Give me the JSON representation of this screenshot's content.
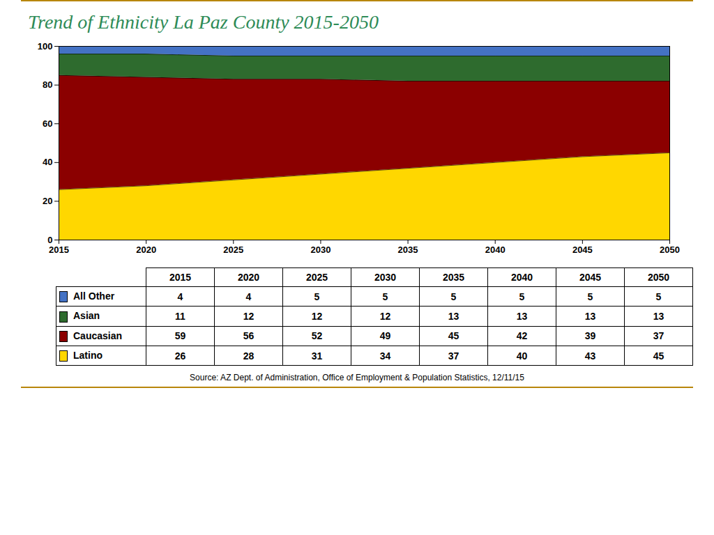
{
  "chart_data": {
    "type": "area",
    "title": "Trend of Ethnicity La Paz County 2015-2050",
    "x": [
      2015,
      2020,
      2025,
      2030,
      2035,
      2040,
      2045,
      2050
    ],
    "series": [
      {
        "name": "Latino",
        "color": "#FFD700",
        "values": [
          26,
          28,
          31,
          34,
          37,
          40,
          43,
          45
        ]
      },
      {
        "name": "Caucasian",
        "color": "#8B0000",
        "values": [
          59,
          56,
          52,
          49,
          45,
          42,
          39,
          37
        ]
      },
      {
        "name": "Asian",
        "color": "#2E6B2E",
        "values": [
          11,
          12,
          12,
          12,
          13,
          13,
          13,
          13
        ]
      },
      {
        "name": "All Other",
        "color": "#4472C4",
        "values": [
          4,
          4,
          5,
          5,
          5,
          5,
          5,
          5
        ]
      }
    ],
    "xlim": [
      2015,
      2050
    ],
    "xticks": [
      2015,
      2020,
      2025,
      2030,
      2035,
      2040,
      2045,
      2050
    ],
    "ylim": [
      0,
      100
    ],
    "yticks": [
      0,
      20,
      40,
      60,
      80,
      100
    ],
    "grid": true,
    "stacked": true,
    "source": "Source:  AZ Dept. of Administration, Office of Employment & Population Statistics, 12/11/15"
  }
}
